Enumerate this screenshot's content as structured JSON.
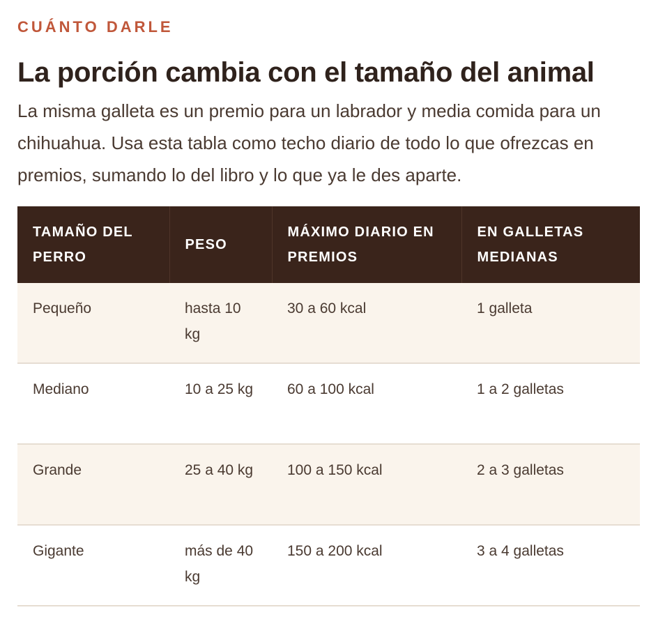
{
  "eyebrow": "CUÁNTO DARLE",
  "title": "La porción cambia con el tamaño del animal",
  "lede": "La misma galleta es un premio para un labrador y media comida para un chihuahua. Usa esta tabla como techo diario de todo lo que ofrezcas en premios, sumando lo del libro y lo que ya le des aparte.",
  "table": {
    "headers": [
      "TAMAÑO DEL PERRO",
      "PESO",
      "MÁXIMO DIARIO EN PREMIOS",
      "EN GALLETAS MEDIANAS"
    ],
    "rows": [
      [
        "Pequeño",
        "hasta 10 kg",
        "30 a 60 kcal",
        "1 galleta"
      ],
      [
        "Mediano",
        "10 a 25 kg",
        "60 a 100 kcal",
        "1 a 2 galletas"
      ],
      [
        "Grande",
        "25 a 40 kg",
        "100 a 150 kcal",
        "2 a 3 galletas"
      ],
      [
        "Gigante",
        "más de 40 kg",
        "150 a 200 kcal",
        "3 a 4 galletas"
      ]
    ]
  },
  "colors": {
    "eyebrow": "#c0573a",
    "header_bg": "#3a241b",
    "row_alt_bg": "#faf4ec",
    "text": "#4a3a31"
  }
}
